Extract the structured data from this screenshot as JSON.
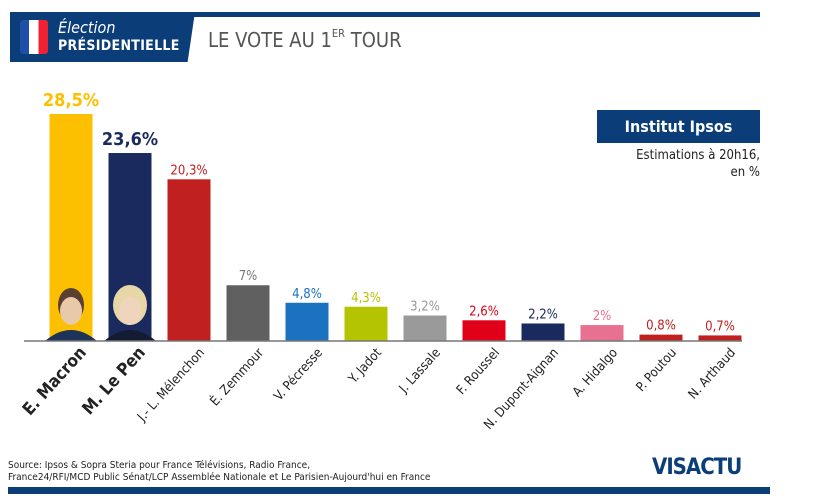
{
  "header": {
    "badge_line1": "Élection",
    "badge_line2": "PRÉSIDENTIELLE",
    "title_main": "LE VOTE AU 1",
    "title_sup": "ER",
    "title_end": " TOUR"
  },
  "institute": "Institut Ipsos",
  "note_line1": "Estimations à 20h16,",
  "note_line2": "en %",
  "source_line1": "Source: Ipsos & Sopra Steria pour France Télévisions, Radio France,",
  "source_line2": "France24/RFI/MCD Public Sénat/LCP Assemblée Nationale et Le Parisien-Aujourd'hui en France",
  "logo": "VISACTU",
  "colors": {
    "brand": "#0b3d78"
  },
  "chart_data": {
    "type": "bar",
    "title": "LE VOTE AU 1ER TOUR",
    "xlabel": "",
    "ylabel": "",
    "ylim": [
      0,
      30
    ],
    "grid": false,
    "categories": [
      "E. Macron",
      "M. Le Pen",
      "J.- L. Mélenchon",
      "É. Zemmour",
      "V. Pécresse",
      "Y. Jadot",
      "J. Lassale",
      "F. Roussel",
      "N. Dupont-Aignan",
      "A. Hidalgo",
      "P. Poutou",
      "N. Arthaud"
    ],
    "values": [
      28.5,
      23.6,
      20.3,
      7,
      4.8,
      4.3,
      3.2,
      2.6,
      2.2,
      2,
      0.8,
      0.7
    ],
    "value_labels": [
      "28,5%",
      "23,6%",
      "20,3%",
      "7%",
      "4,8%",
      "4,3%",
      "3,2%",
      "2,6%",
      "2,2%",
      "2%",
      "0,8%",
      "0,7%"
    ],
    "colors": [
      "#fcc000",
      "#1b2a5e",
      "#c0201f",
      "#606060",
      "#1b72c0",
      "#b5c400",
      "#9a9a9a",
      "#e0001a",
      "#1b2a5e",
      "#e87090",
      "#c0201f",
      "#c0201f"
    ],
    "label_colors": [
      "#fcc000",
      "#1b2a5e",
      "#c0201f",
      "#777777",
      "#1b72c0",
      "#b5c400",
      "#9a9a9a",
      "#e0001a",
      "#1b2a5e",
      "#e87090",
      "#c0201f",
      "#c0201f"
    ],
    "highlighted": [
      true,
      true,
      false,
      false,
      false,
      false,
      false,
      false,
      false,
      false,
      false,
      false
    ]
  }
}
